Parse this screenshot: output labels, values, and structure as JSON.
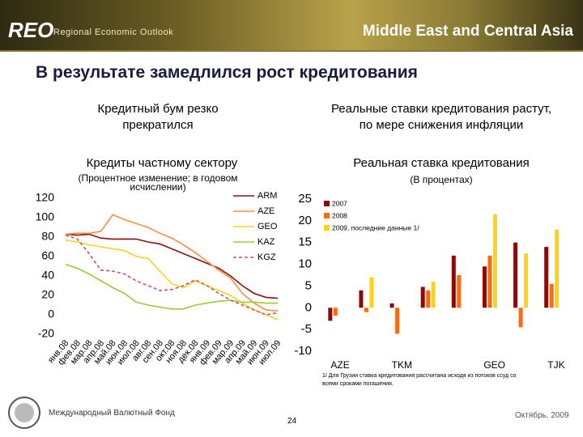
{
  "header": {
    "brand": "REO",
    "brand_sub": "Regional Economic Outlook",
    "region": "Middle East and Central Asia"
  },
  "title": "В результате замедлился рост кредитования",
  "chart_data": [
    {
      "type": "line",
      "heading": "Кредитный бум резко прекратился",
      "title": "Кредиты частному сектору",
      "subtitle": "(Процентное изменение; в годовом исчислении)",
      "categories": [
        "янв.08",
        "фев.08",
        "мар.08",
        "апр.08",
        "май.08",
        "июн.08",
        "июл.08",
        "авг.08",
        "сен.08",
        "окт.08",
        "ноя.08",
        "дек.08",
        "янв.09",
        "фев.09",
        "мар.09",
        "апр.09",
        "май.09",
        "июн.09",
        "июл.09"
      ],
      "series": [
        {
          "name": "ARM",
          "color": "#8b1010",
          "dashed": false,
          "values": [
            83,
            82,
            83,
            79,
            78,
            78,
            78,
            75,
            73,
            68,
            63,
            58,
            53,
            48,
            40,
            30,
            22,
            18,
            17
          ]
        },
        {
          "name": "AZE",
          "color": "#ff8c40",
          "dashed": false,
          "values": [
            83,
            84,
            84,
            86,
            103,
            98,
            94,
            90,
            84,
            79,
            72,
            64,
            55,
            46,
            38,
            22,
            12,
            5,
            4
          ]
        },
        {
          "name": "GEO",
          "color": "#ffd21a",
          "dashed": false,
          "values": [
            77,
            75,
            72,
            70,
            68,
            66,
            60,
            58,
            45,
            32,
            28,
            35,
            30,
            25,
            20,
            12,
            5,
            0,
            -5
          ]
        },
        {
          "name": "KAZ",
          "color": "#9acd32",
          "dashed": false,
          "values": [
            52,
            48,
            42,
            35,
            28,
            22,
            13,
            10,
            8,
            6,
            6,
            10,
            12,
            14,
            15,
            13,
            13,
            12,
            12
          ]
        },
        {
          "name": "KGZ",
          "color": "#c8507a",
          "dashed": true,
          "values": [
            82,
            78,
            63,
            46,
            45,
            42,
            35,
            30,
            25,
            26,
            30,
            36,
            30,
            22,
            15,
            10,
            5,
            0,
            2
          ]
        }
      ],
      "ylim": [
        -20,
        120
      ],
      "yticks": [
        -20,
        0,
        20,
        40,
        60,
        80,
        100,
        120
      ],
      "legend": "right"
    },
    {
      "type": "bar",
      "heading": "Реальные ставки кредитования растут, по мере снижения инфляции",
      "title": "Реальная ставка кредитования",
      "subtitle": "(В процентах)",
      "categories": [
        "AZE",
        null,
        "TKM",
        null,
        null,
        "GEO",
        null,
        "TJK"
      ],
      "series": [
        {
          "name": "2007",
          "color": "#8b0a0a",
          "values": [
            -3,
            4,
            1,
            4.8,
            12,
            9.5,
            15,
            14
          ]
        },
        {
          "name": "2008",
          "color": "#ff6a10",
          "values": [
            -1.8,
            -1,
            -6,
            4,
            7.5,
            12,
            -4.5,
            5.5
          ]
        },
        {
          "name": "2009, последние данные 1/",
          "color": "#ffd21a",
          "values": [
            null,
            7,
            null,
            6,
            null,
            21.5,
            12.5,
            18
          ]
        }
      ],
      "ylim": [
        -10,
        25
      ],
      "yticks": [
        -10,
        -5,
        0,
        5,
        10,
        15,
        20,
        25
      ],
      "legend": "top-left",
      "footnote": "1/ Для Грузии ставка кредитования рассчитана исходя из потоков ссуд со всеми сроками погашения."
    }
  ],
  "footer": {
    "org": "Международный Валютный Фонд",
    "page": "24",
    "date": "Октябрь, 2009"
  }
}
